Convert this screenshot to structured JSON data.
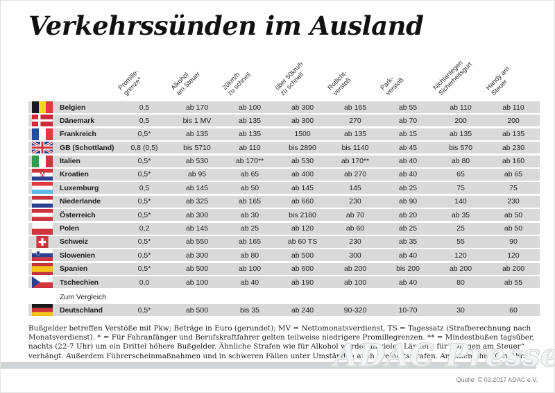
{
  "page": {
    "title": "Verkehrssünden im Ausland",
    "watermark": "ADAC Presse",
    "source": "Quelle: © 03.2017 ADAC  e.V."
  },
  "colors": {
    "row_bg": "#d9d9d9",
    "bar": "#cfd4d7",
    "ink": "#1d1d1b"
  },
  "table": {
    "headers": [
      "Promille-\ngrenze*",
      "Alkohol\nam Steuer",
      "20km/h\nzu schnell",
      "über 50km/h\nzu schnell",
      "Rotlicht-\nverstoß",
      "Park-\nverstoß",
      "Nichtanlegen\nSicherheitsgurt",
      "Handy am\nSteuer"
    ],
    "rows": [
      {
        "country": "Belgien",
        "flag": "belgien",
        "values": [
          "0,5",
          "ab 170",
          "ab 100",
          "ab 300",
          "ab 165",
          "ab 55",
          "ab 110",
          "ab 110"
        ]
      },
      {
        "country": "Dänemark",
        "flag": "daenemark",
        "values": [
          "0,5",
          "bis 1 MV",
          "ab 135",
          "ab 300",
          "270",
          "ab 70",
          "200",
          "200"
        ]
      },
      {
        "country": "Frankreich",
        "flag": "frankreich",
        "values": [
          "0,5*",
          "ab 135",
          "ab 135",
          "1500",
          "ab 135",
          "ab 15",
          "ab 135",
          "ab 135"
        ]
      },
      {
        "country": "GB (Schottland)",
        "flag": "gb",
        "values": [
          "0,8 (0,5)",
          "bis 5710",
          "ab 110",
          "bis 2890",
          "bis 1140",
          "ab 45",
          "bis 570",
          "ab 230"
        ]
      },
      {
        "country": "Italien",
        "flag": "italien",
        "values": [
          "0,5*",
          "ab 530",
          "ab 170**",
          "ab 530",
          "ab 170**",
          "ab 40",
          "ab 80",
          "ab 160"
        ]
      },
      {
        "country": "Kroatien",
        "flag": "kroatien",
        "values": [
          "0,5*",
          "ab 95",
          "ab 65",
          "ab 400",
          "ab 270",
          "ab 40",
          "65",
          "ab 65"
        ]
      },
      {
        "country": "Luxemburg",
        "flag": "luxemburg",
        "values": [
          "0,5",
          "ab 145",
          "ab 50",
          "ab 145",
          "145",
          "ab 25",
          "75",
          "75"
        ]
      },
      {
        "country": "Niederlande",
        "flag": "niederlande",
        "values": [
          "0,5*",
          "ab 325",
          "ab 165",
          "ab 660",
          "230",
          "ab 90",
          "140",
          "230"
        ]
      },
      {
        "country": "Österreich",
        "flag": "oesterreich",
        "values": [
          "0,5*",
          "ab 300",
          "ab 30",
          "bis 2180",
          "ab 70",
          "ab 20",
          "ab 35",
          "ab 50"
        ]
      },
      {
        "country": "Polen",
        "flag": "polen",
        "values": [
          "0,2",
          "ab 145",
          "ab 25",
          "ab 120",
          "ab 60",
          "ab 25",
          "25",
          "ab 50"
        ]
      },
      {
        "country": "Schweiz",
        "flag": "schweiz",
        "values": [
          "0,5*",
          "ab 550",
          "ab 165",
          "ab 60 TS",
          "230",
          "ab 35",
          "55",
          "90"
        ]
      },
      {
        "country": "Slowenien",
        "flag": "slowenien",
        "values": [
          "0,5*",
          "ab 300",
          "ab 80",
          "ab 500",
          "300",
          "ab 40",
          "120",
          "120"
        ]
      },
      {
        "country": "Spanien",
        "flag": "spanien",
        "values": [
          "0,5*",
          "ab 500",
          "ab 100",
          "ab 600",
          "ab 200",
          "bis 200",
          "ab 200",
          "ab 200"
        ]
      },
      {
        "country": "Tschechien",
        "flag": "tschechien",
        "values": [
          "0,0",
          "ab 100",
          "ab 40",
          "ab 190",
          "ab 100",
          "ab 40",
          "80",
          "ab 55"
        ]
      }
    ],
    "comparison_label": "Zum Vergleich",
    "comparison_row": {
      "country": "Deutschland",
      "flag": "deutschland",
      "values": [
        "0,5*",
        "ab 500",
        "bis 35",
        "ab 240",
        "90-320",
        "10-70",
        "30",
        "60"
      ]
    }
  },
  "footnote": "Bußgelder betreffen Verstöße mit Pkw; Beträge in Euro (gerundet); MV = Nettomonatsverdienst, TS = Tagessatz (Strafberechnung nach Monatsverdienst). * = Für Fahranfänger und Berufskraftfahrer gelten teilweise niedrigere Promillegrenzen. ** = Mindestbußen tagsüber, nachts (22-7 Uhr) um ein Drittel höhere Bußgelder. Ähnliche Strafen wie für Alkohol werden in vielen Ländern für „Drogen am Steuer“ verhängt. Außerdem Führerscheinmaßnahmen und in schweren Fällen unter Umständen auch Freiheitsstrafen. Angaben ohne Gewähr.",
  "flags": {
    "belgien": {
      "type": "v",
      "colors": [
        "#1a1a1a",
        "#f9d616",
        "#e03a3e"
      ]
    },
    "daenemark": {
      "type": "nordic",
      "bg": "#cf2a3a",
      "cross": "#ffffff"
    },
    "frankreich": {
      "type": "v",
      "colors": [
        "#1f4f9f",
        "#ffffff",
        "#e03a3e"
      ]
    },
    "gb": {
      "type": "uk",
      "bg": "#2b3f8f",
      "white": "#ffffff",
      "red": "#d0343c"
    },
    "italien": {
      "type": "v",
      "colors": [
        "#2f9e4f",
        "#ffffff",
        "#d0343c"
      ]
    },
    "kroatien": {
      "type": "h",
      "colors": [
        "#d0343c",
        "#ffffff",
        "#2b3f8f"
      ],
      "crest": "checker"
    },
    "luxemburg": {
      "type": "h",
      "colors": [
        "#e03a3e",
        "#ffffff",
        "#5bb8e8"
      ]
    },
    "niederlande": {
      "type": "h",
      "colors": [
        "#c8313e",
        "#ffffff",
        "#2b3f8f"
      ]
    },
    "oesterreich": {
      "type": "h",
      "colors": [
        "#d0343c",
        "#ffffff",
        "#d0343c"
      ]
    },
    "polen": {
      "type": "h",
      "colors": [
        "#ffffff",
        "#d0343c"
      ]
    },
    "schweiz": {
      "type": "swiss",
      "bg": "#d0343c",
      "cross": "#ffffff"
    },
    "slowenien": {
      "type": "h",
      "colors": [
        "#ffffff",
        "#2b3f8f",
        "#d0343c"
      ],
      "crest": "shield"
    },
    "spanien": {
      "type": "spain",
      "colors": [
        "#c8313e",
        "#f5c518"
      ]
    },
    "tschechien": {
      "type": "cz",
      "top": "#ffffff",
      "bottom": "#d0343c",
      "triangle": "#2b3f8f"
    },
    "deutschland": {
      "type": "h",
      "colors": [
        "#1a1a1a",
        "#d0343c",
        "#f5c518"
      ]
    }
  }
}
